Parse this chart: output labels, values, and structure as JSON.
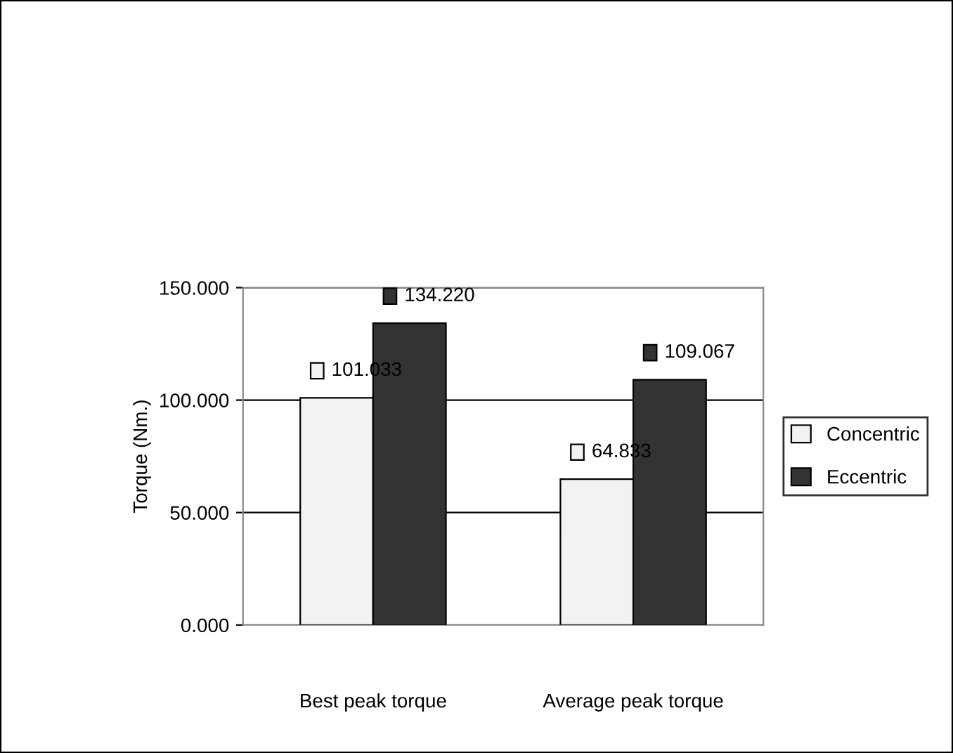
{
  "chart_data": {
    "type": "bar",
    "ylabel": "Torque (Nm.)",
    "categories": [
      "Best peak torque",
      "Average peak torque"
    ],
    "series": [
      {
        "name": "Concentric",
        "color": "#f2f2f2",
        "values": [
          101.033,
          64.833
        ],
        "value_labels": [
          "101.033",
          "64.833"
        ]
      },
      {
        "name": "Eccentric",
        "color": "#333333",
        "values": [
          134.22,
          109.067
        ],
        "value_labels": [
          "134.220",
          "109.067"
        ]
      }
    ],
    "ylim": [
      0,
      150
    ],
    "yticks": [
      {
        "value": 0,
        "label": "0.000"
      },
      {
        "value": 50,
        "label": "50.000"
      },
      {
        "value": 100,
        "label": "100.000"
      },
      {
        "value": 150,
        "label": "150.000"
      }
    ],
    "grid": "y",
    "legend": "right"
  }
}
